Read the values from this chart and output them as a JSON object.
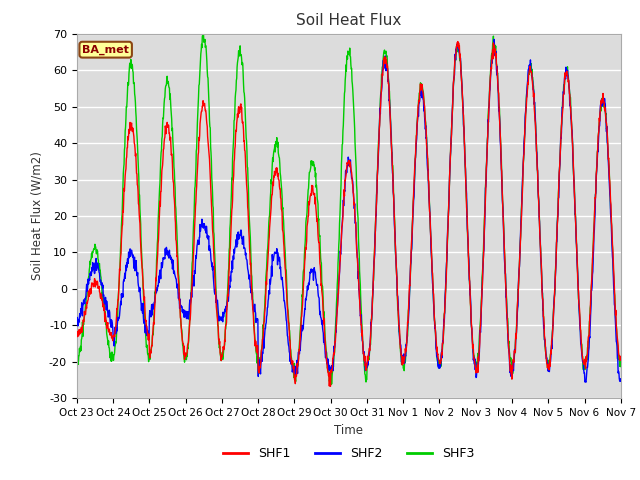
{
  "title": "Soil Heat Flux",
  "ylabel": "Soil Heat Flux (W/m2)",
  "xlabel": "Time",
  "ylim": [
    -30,
    70
  ],
  "yticks": [
    -30,
    -20,
    -10,
    0,
    10,
    20,
    30,
    40,
    50,
    60,
    70
  ],
  "annotation_text": "BA_met",
  "annotation_bg": "#FFFF99",
  "annotation_border": "#8B4513",
  "line_colors": {
    "SHF1": "#FF0000",
    "SHF2": "#0000FF",
    "SHF3": "#00CC00"
  },
  "line_width": 1.0,
  "bg_color": "#DCDCDC",
  "fig_bg": "#FFFFFF",
  "x_tick_labels": [
    "Oct 23",
    "Oct 24",
    "Oct 25",
    "Oct 26",
    "Oct 27",
    "Oct 28",
    "Oct 29",
    "Oct 30",
    "Oct 31",
    "Nov 1",
    "Nov 2",
    "Nov 3",
    "Nov 4",
    "Nov 5",
    "Nov 6",
    "Nov 7"
  ],
  "num_days": 15,
  "pts_per_day": 96
}
